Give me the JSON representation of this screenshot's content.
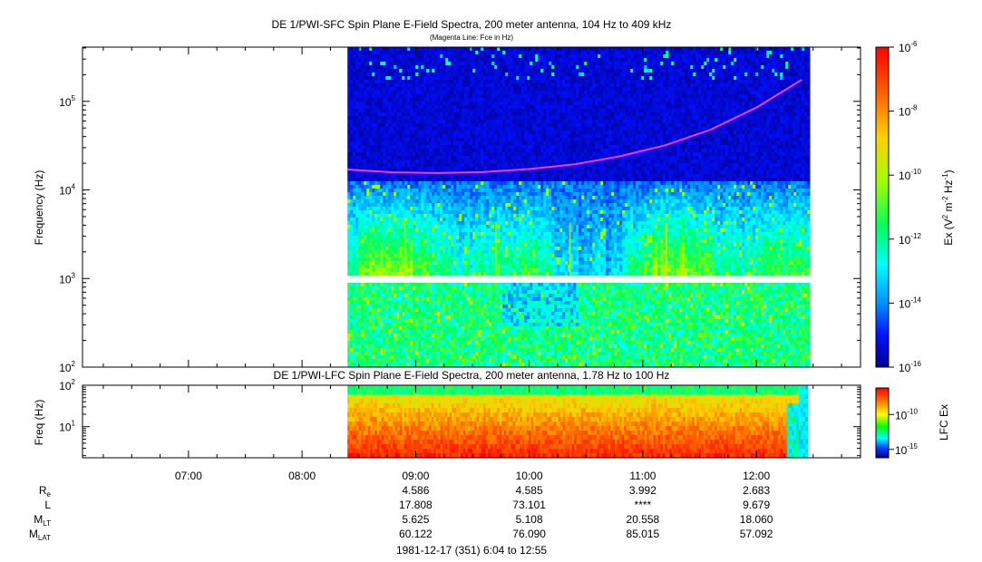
{
  "chart_data": [
    {
      "type": "heatmap",
      "title": "DE 1/PWI-SFC  Spin Plane E-Field Spectra, 200 meter antenna, 104 Hz to 409 kHz",
      "subtitle": "(Magenta Line: Fce in Hz)",
      "ylabel": "Frequency (Hz)",
      "yscale": "log",
      "ylim": [
        100,
        409000
      ],
      "yticks": [
        {
          "value": 100,
          "label_base": "10",
          "label_exp": "2"
        },
        {
          "value": 1000,
          "label_base": "10",
          "label_exp": "3"
        },
        {
          "value": 10000,
          "label_base": "10",
          "label_exp": "4"
        },
        {
          "value": 100000,
          "label_base": "10",
          "label_exp": "5"
        }
      ],
      "data_start_hour": 8.4,
      "data_end_hour": 12.45,
      "data_gap_hz": [
        900,
        1050
      ],
      "fce_line": {
        "color": "#ff33ff",
        "hours": [
          8.4,
          8.8,
          9.2,
          9.6,
          10.0,
          10.4,
          10.8,
          11.2,
          11.6,
          12.0,
          12.4
        ],
        "values_hz": [
          17000,
          15800,
          15500,
          15900,
          17200,
          19500,
          24000,
          32000,
          48000,
          85000,
          175000
        ]
      },
      "colorbar": {
        "label_prefix": "Ex (V",
        "label_sup1": "2",
        "label_mid": " m",
        "label_sup2": "-2",
        "label_mid2": " Hz",
        "label_sup3": "-1",
        "label_suffix": ")",
        "ticks": [
          {
            "exp": "-6",
            "frac": 0.0
          },
          {
            "exp": "-8",
            "frac": 0.2
          },
          {
            "exp": "-10",
            "frac": 0.4
          },
          {
            "exp": "-12",
            "frac": 0.6
          },
          {
            "exp": "-14",
            "frac": 0.8
          },
          {
            "exp": "-16",
            "frac": 1.0
          }
        ],
        "colors": [
          "#ff0000",
          "#ff7f00",
          "#ffff00",
          "#00ff00",
          "#00ffff",
          "#0080ff",
          "#0000ff",
          "#00008b"
        ]
      }
    },
    {
      "type": "heatmap",
      "title": "DE 1/PWI-LFC  Spin Plane E-Field Spectra, 200 meter antenna, 1.78 Hz to 100 Hz",
      "ylabel": "Freq (Hz)",
      "yscale": "log",
      "ylim": [
        1.78,
        100
      ],
      "yticks": [
        {
          "value": 10,
          "label_base": "10",
          "label_exp": "1"
        },
        {
          "value": 100,
          "label_base": "10",
          "label_exp": "2"
        }
      ],
      "data_start_hour": 8.4,
      "data_end_hour": 12.45,
      "colorbar": {
        "label": "LFC Ex",
        "ticks": [
          {
            "exp": "-10",
            "frac": 0.38
          },
          {
            "exp": "-15",
            "frac": 0.88
          }
        ],
        "colors": [
          "#ff0000",
          "#ff7f00",
          "#ffff00",
          "#00ff00",
          "#00ffff",
          "#0000ff",
          "#00008b"
        ]
      }
    }
  ],
  "xaxis": {
    "xlim_hours": [
      6.067,
      12.917
    ],
    "major_ticks": [
      {
        "hour": 7,
        "label": "07:00"
      },
      {
        "hour": 8,
        "label": "08:00"
      },
      {
        "hour": 9,
        "label": "09:00"
      },
      {
        "hour": 10,
        "label": "10:00"
      },
      {
        "hour": 11,
        "label": "11:00"
      },
      {
        "hour": 12,
        "label": "12:00"
      }
    ]
  },
  "ephemeris": {
    "rows": [
      {
        "label": "R",
        "sub": "e",
        "values": [
          "4.586",
          "4.585",
          "3.992",
          "2.683"
        ]
      },
      {
        "label": "L",
        "sub": "",
        "values": [
          "17.808",
          "73.101",
          "****",
          "9.679"
        ]
      },
      {
        "label": "M",
        "sub": "LT",
        "values": [
          "5.625",
          "5.108",
          "20.558",
          "18.060"
        ]
      },
      {
        "label": "M",
        "sub": "LAT",
        "values": [
          "60.122",
          "76.090",
          "85.015",
          "57.092"
        ]
      }
    ],
    "column_hours": [
      9,
      10,
      11,
      12
    ]
  },
  "footer": "1981-12-17 (351) 6:04 to 12:55"
}
